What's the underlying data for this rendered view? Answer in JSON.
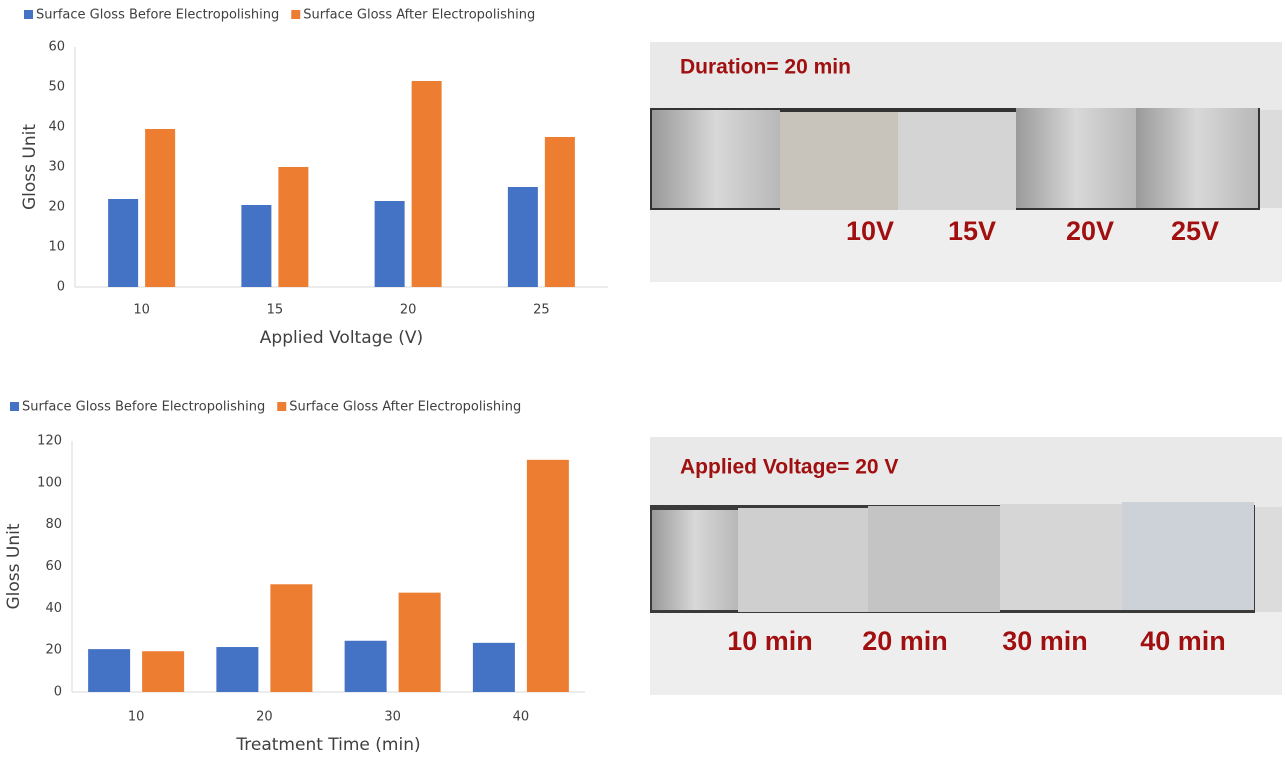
{
  "chart_data": [
    {
      "type": "bar",
      "x_label": "Applied Voltage (V)",
      "y_label": "Gloss Unit",
      "categories": [
        "10",
        "15",
        "20",
        "25"
      ],
      "series": [
        {
          "name": "Surface Gloss Before Electropolishing",
          "color": "#4472c4",
          "values": [
            22,
            20.5,
            21.5,
            25
          ]
        },
        {
          "name": "Surface Gloss After Electropolishing",
          "color": "#ed7d31",
          "values": [
            39.5,
            30,
            51.5,
            37.5
          ]
        }
      ],
      "ylim": [
        0,
        60
      ],
      "yticks": [
        0,
        10,
        20,
        30,
        40,
        50,
        60
      ],
      "grid": false,
      "legend": "top"
    },
    {
      "type": "bar",
      "x_label": "Treatment Time (min)",
      "y_label": "Gloss Unit",
      "categories": [
        "10",
        "20",
        "30",
        "40"
      ],
      "series": [
        {
          "name": "Surface Gloss Before Electropolishing",
          "color": "#4472c4",
          "values": [
            20.5,
            21.5,
            24.5,
            23.5
          ]
        },
        {
          "name": "Surface Gloss After Electropolishing",
          "color": "#ed7d31",
          "values": [
            19.5,
            51.5,
            47.5,
            111
          ]
        }
      ],
      "ylim": [
        0,
        120
      ],
      "yticks": [
        0,
        20,
        40,
        60,
        80,
        100,
        120
      ],
      "grid": false,
      "legend": "top"
    }
  ],
  "photos": [
    {
      "title": "Duration= 20 min",
      "labels": [
        "10V",
        "15V",
        "20V",
        "25V"
      ]
    },
    {
      "title": "Applied Voltage= 20 V",
      "labels": [
        "10 min",
        "20 min",
        "30 min",
        "40 min"
      ]
    }
  ]
}
